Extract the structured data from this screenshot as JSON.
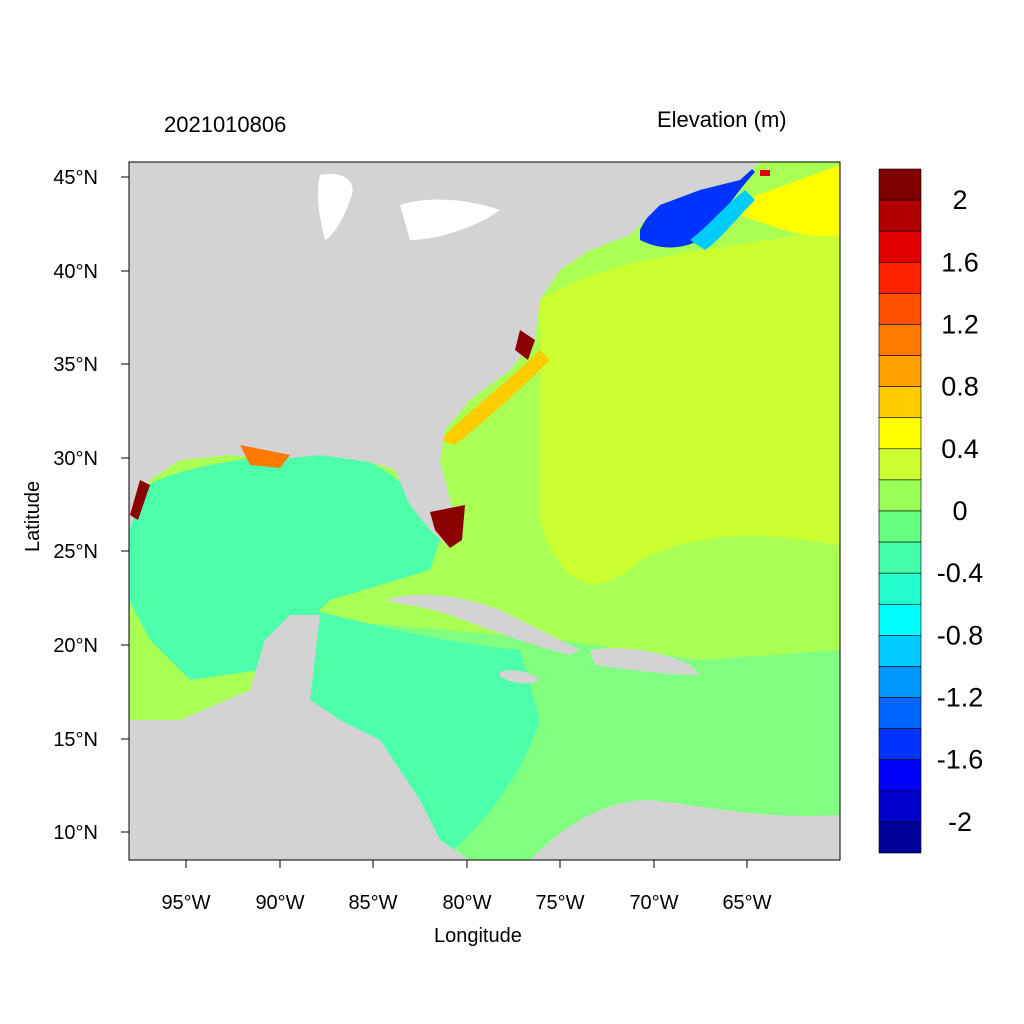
{
  "figure": {
    "timestamp": "2021010806",
    "variable_title": "Elevation (m)",
    "xlabel": "Longitude",
    "ylabel": "Latitude"
  },
  "axes": {
    "lon_ticks": [
      "95°W",
      "90°W",
      "85°W",
      "80°W",
      "75°W",
      "70°W",
      "65°W"
    ],
    "lat_ticks": [
      "45°N",
      "40°N",
      "35°N",
      "30°N",
      "25°N",
      "20°N",
      "15°N",
      "10°N"
    ],
    "lon_range": [
      -98,
      -60
    ],
    "lat_range": [
      8.5,
      46
    ]
  },
  "colorbar": {
    "labels": [
      "2",
      "1.6",
      "1.2",
      "0.8",
      "0.4",
      "0",
      "-0.4",
      "-0.8",
      "-1.2",
      "-1.6",
      "-2"
    ],
    "colors": [
      "#800000",
      "#b00000",
      "#e00000",
      "#ff2000",
      "#ff5000",
      "#ff7800",
      "#ffa000",
      "#ffcc00",
      "#ffff00",
      "#ccff30",
      "#99ff55",
      "#66ff80",
      "#44ffaa",
      "#22ffcc",
      "#00ffff",
      "#00ccff",
      "#0099ff",
      "#0066ff",
      "#0033ff",
      "#0000ff",
      "#0000cc",
      "#000099"
    ]
  },
  "colors": {
    "land": "#d3d3d3",
    "gulf": "#4dffaa",
    "atlantic": "#aaff55",
    "caribbean": "#80ff80",
    "north_anomaly": "#0033ff",
    "surge_high": "#8b0000"
  }
}
